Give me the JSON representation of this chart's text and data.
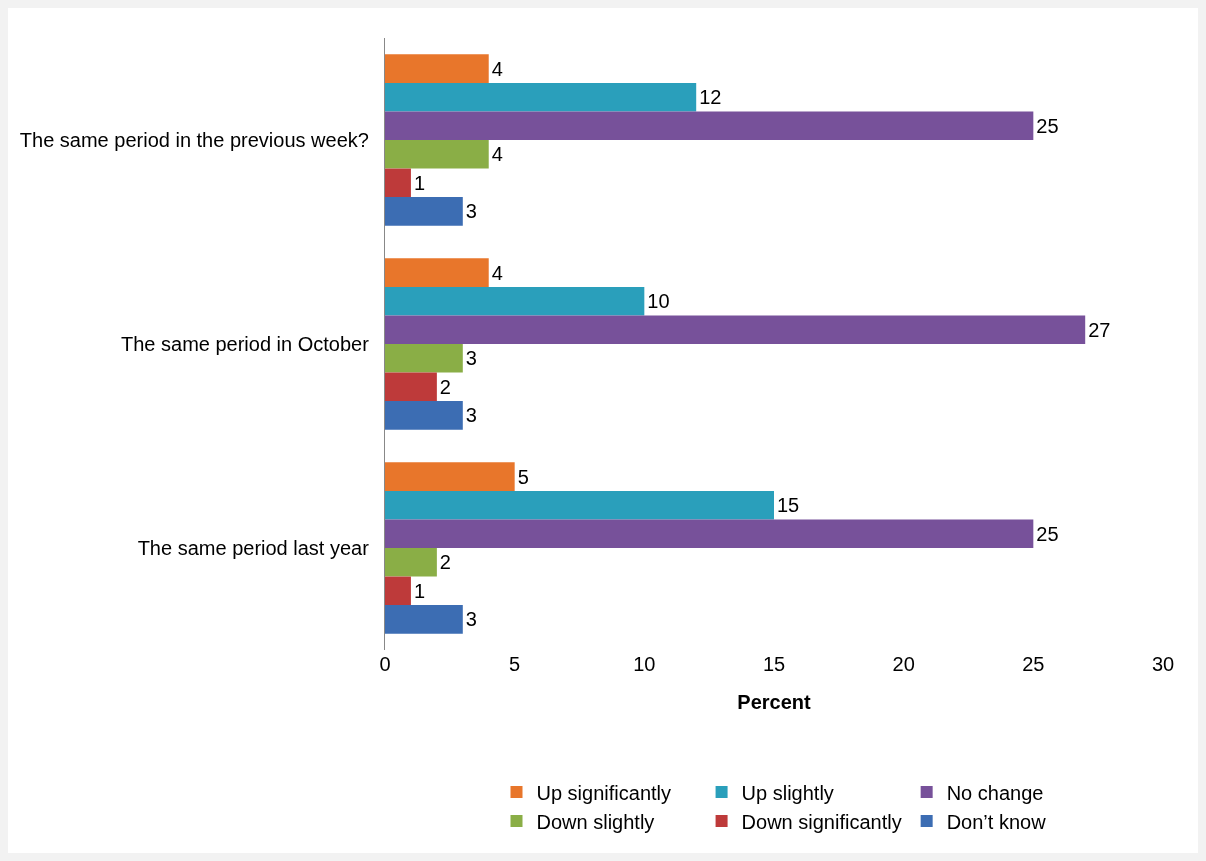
{
  "chart_data": {
    "type": "bar",
    "orientation": "horizontal",
    "xlabel": "Percent",
    "categories": [
      "The same period in the previous week?",
      "The same period in October",
      "The same period last year"
    ],
    "series": [
      {
        "name": "Up significantly",
        "color": "#e8762b",
        "values": [
          4,
          4,
          5
        ]
      },
      {
        "name": "Up slightly",
        "color": "#2a9fbb",
        "values": [
          12,
          10,
          15
        ]
      },
      {
        "name": "No change",
        "color": "#77519a",
        "values": [
          25,
          27,
          25
        ]
      },
      {
        "name": "Down slightly",
        "color": "#8aae46",
        "values": [
          4,
          3,
          2
        ]
      },
      {
        "name": "Down significantly",
        "color": "#be3a3a",
        "values": [
          1,
          2,
          1
        ]
      },
      {
        "name": "Don’t know",
        "color": "#3c6db3",
        "values": [
          3,
          3,
          3
        ]
      }
    ],
    "xlim": [
      0,
      30
    ],
    "xticks": [
      0,
      5,
      10,
      15,
      20,
      25,
      30
    ],
    "grid": false,
    "legend": "bottom",
    "data_labels": true
  }
}
